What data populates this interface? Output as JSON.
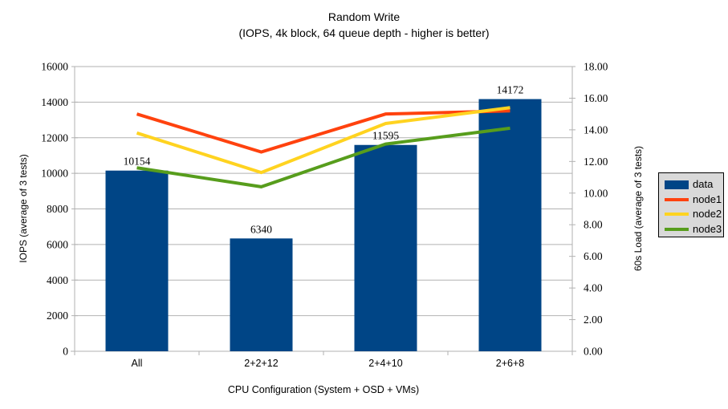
{
  "title": "Random Write",
  "subtitle": "(IOPS, 4k block, 64 queue depth - higher is better)",
  "colors": {
    "bar": "#004586",
    "node1": "#ff420e",
    "node2": "#ffd320",
    "node3": "#579d1c",
    "grid": "#b2b2b2",
    "axis": "#b2b2b2",
    "text": "#000000",
    "legend_bg": "#d9d9d9",
    "legend_border": "#000000"
  },
  "chart_data": {
    "type": "bar+line combination",
    "categories": [
      "All",
      "2+2+12",
      "2+4+10",
      "2+6+8"
    ],
    "bar_series": {
      "name": "data",
      "axis": "left",
      "values": [
        10154,
        6340,
        11595,
        14172
      ],
      "data_labels": [
        "10154",
        "6340",
        "11595",
        "14172"
      ]
    },
    "line_series": [
      {
        "name": "node1",
        "axis": "right",
        "values": [
          15.0,
          12.6,
          15.0,
          15.2
        ]
      },
      {
        "name": "node2",
        "axis": "right",
        "values": [
          13.8,
          11.3,
          14.4,
          15.4
        ]
      },
      {
        "name": "node3",
        "axis": "right",
        "values": [
          11.6,
          10.4,
          13.1,
          14.1
        ]
      }
    ],
    "y_left": {
      "label": "IOPS (average of 3 tests)",
      "min": 0,
      "max": 16000,
      "step": 2000,
      "decimals": 0
    },
    "y_right": {
      "label": "60s Load (average of 3 tests)",
      "min": 0,
      "max": 18,
      "step": 2,
      "decimals": 2
    },
    "x": {
      "label": "CPU Configuration (System + OSD + VMs)"
    },
    "grid": "horizontal gridlines at left-axis steps",
    "legend": {
      "position": "right",
      "entries": [
        {
          "label": "data",
          "type": "box",
          "color": "#004586"
        },
        {
          "label": "node1",
          "type": "line",
          "color": "#ff420e"
        },
        {
          "label": "node2",
          "type": "line",
          "color": "#ffd320"
        },
        {
          "label": "node3",
          "type": "line",
          "color": "#579d1c"
        }
      ]
    }
  }
}
